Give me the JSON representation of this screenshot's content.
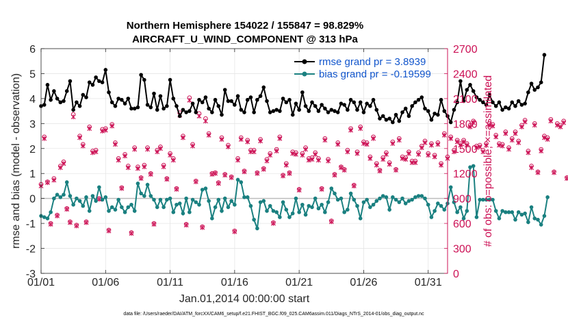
{
  "chart_data": {
    "type": "line",
    "title_line1": "Northern Hemisphere 154022 / 155847 = 98.829%",
    "title_line2": "AIRCRAFT_U_WIND_COMPONENT @ 313 hPa",
    "xlabel": "Jan.01,2014 00:00:00 start",
    "ylabel_left": "rmse and bias (model - observation)",
    "ylabel_right": "# of obs: o=possible; ×=assimilated",
    "footnote": "data file: /Users/raeder/DAI/ATM_forcXX/CAM6_setup/f.e21.FHIST_BGC.f09_025.CAM6assim.011/Diags_NTrS_2014-01/obs_diag_output.nc",
    "xlim": [
      0,
      31.5
    ],
    "ylim_left": [
      -3,
      6
    ],
    "ylim_right": [
      0,
      2700
    ],
    "x_ticks": [
      {
        "value": 0,
        "label": "01/01"
      },
      {
        "value": 5,
        "label": "01/06"
      },
      {
        "value": 10,
        "label": "01/11"
      },
      {
        "value": 15,
        "label": "01/16"
      },
      {
        "value": 20,
        "label": "01/21"
      },
      {
        "value": 25,
        "label": "01/26"
      },
      {
        "value": 30,
        "label": "01/31"
      }
    ],
    "y_ticks_left": [
      "-3",
      "-2",
      "-1",
      "0",
      "1",
      "2",
      "3",
      "4",
      "5",
      "6"
    ],
    "y_ticks_right": [
      "0",
      "300",
      "600",
      "900",
      "1200",
      "1500",
      "1800",
      "2100",
      "2400",
      "2700"
    ],
    "x_step_days": 0.25,
    "series": [
      {
        "name": "rmse",
        "legend": "rmse grand pr = 3.8939",
        "color": "#000000",
        "marker": "star",
        "values": [
          3.7,
          3.75,
          4.55,
          3.95,
          4.3,
          4.0,
          3.85,
          3.9,
          4.3,
          4.7,
          3.55,
          3.85,
          3.7,
          4.15,
          4.05,
          4.65,
          4.55,
          4.85,
          4.7,
          4.65,
          5.15,
          4.25,
          3.85,
          3.7,
          4.0,
          3.95,
          3.8,
          4.0,
          3.6,
          3.6,
          3.65,
          4.95,
          4.75,
          3.75,
          3.65,
          4.2,
          3.55,
          4.1,
          3.6,
          3.7,
          4.75,
          4.0,
          3.7,
          3.3,
          3.55,
          3.45,
          3.5,
          3.8,
          3.45,
          3.95,
          3.85,
          4.05,
          3.6,
          3.45,
          3.95,
          3.7,
          3.35,
          4.35,
          3.9,
          3.9,
          3.75,
          4.1,
          3.55,
          3.45,
          3.95,
          4.05,
          3.45,
          3.95,
          4.1,
          4.45,
          3.9,
          3.45,
          3.5,
          3.55,
          3.5,
          4.0,
          3.85,
          3.95,
          3.35,
          3.8,
          3.55,
          4.25,
          3.7,
          3.5,
          3.85,
          3.7,
          3.5,
          3.75,
          3.6,
          3.45,
          3.55,
          3.5,
          3.45,
          3.8,
          3.75,
          3.55,
          3.95,
          3.85,
          3.55,
          3.85,
          3.45,
          3.8,
          3.7,
          3.95,
          3.55,
          3.2,
          3.3,
          3.15,
          3.2,
          3.05,
          3.35,
          3.1,
          3.45,
          3.6,
          3.3,
          3.7,
          3.85,
          3.95,
          4.05,
          3.6,
          3.5,
          3.15,
          3.4,
          3.35,
          3.95,
          3.5,
          3.3,
          3.05,
          3.55,
          3.85,
          4.7,
          3.9,
          4.35,
          4.55,
          4.3,
          4.05,
          3.95,
          3.85,
          3.75,
          4.15,
          3.85,
          3.7,
          3.85,
          3.55,
          3.65,
          3.6,
          3.85,
          3.7,
          3.9,
          3.75,
          3.8,
          4.25,
          4.6,
          4.35,
          4.45,
          4.65,
          5.75
        ],
        "values_note": "approximate, read from plot at 6-hourly spacing"
      },
      {
        "name": "bias",
        "legend": "bias grand pr = -0.19599",
        "color": "#1a8080",
        "marker": "circle",
        "values": [
          -0.7,
          -0.75,
          -0.8,
          -0.55,
          0.0,
          0.15,
          0.05,
          0.15,
          0.65,
          0.1,
          -0.25,
          0.0,
          -0.1,
          -0.3,
          0.05,
          -0.5,
          0.1,
          -0.1,
          0.45,
          -0.05,
          0.05,
          -0.5,
          -0.35,
          -0.45,
          -0.05,
          -0.35,
          -0.55,
          -0.35,
          -0.25,
          -0.5,
          0.6,
          0.2,
          0.1,
          0.55,
          0.1,
          -0.05,
          -0.35,
          -0.05,
          -0.35,
          -0.05,
          0.0,
          -0.55,
          -0.25,
          -0.2,
          -0.6,
          0.0,
          -0.55,
          -0.05,
          -0.15,
          -0.25,
          0.35,
          0.4,
          -0.1,
          -0.8,
          -0.35,
          -0.05,
          -0.5,
          0.0,
          -0.35,
          -0.1,
          -0.25,
          0.75,
          0.65,
          0.05,
          0.05,
          -0.3,
          -0.85,
          -1.2,
          -0.15,
          -0.1,
          -0.5,
          -0.3,
          -0.5,
          -0.55,
          -0.75,
          -0.15,
          -0.45,
          -0.75,
          -0.6,
          0.0,
          -0.55,
          -0.25,
          -0.65,
          -0.3,
          -0.35,
          0.0,
          -0.4,
          -0.25,
          -0.55,
          -0.15,
          0.4,
          0.2,
          -0.05,
          0.0,
          -0.55,
          -0.45,
          0.2,
          -0.05,
          -0.3,
          -0.8,
          -0.15,
          -0.05,
          -0.35,
          -0.25,
          -0.1,
          0.0,
          0.1,
          0.05,
          -0.45,
          0.05,
          -0.05,
          -0.15,
          0.0,
          -0.2,
          -0.1,
          -0.05,
          0.05,
          0.1,
          0.1,
          0.0,
          -0.25,
          -0.75,
          -0.5,
          -0.2,
          -0.3,
          -0.45,
          -0.2,
          0.45,
          -0.15,
          -0.55,
          -0.35,
          -0.8,
          -0.5,
          1.25,
          1.3,
          -0.75,
          -0.05,
          -0.05,
          -0.05,
          -0.05,
          -0.05,
          -0.5,
          -0.8,
          -0.5,
          -0.55,
          -0.55,
          -0.55,
          -0.85,
          -0.55,
          -0.65,
          -0.6,
          -0.95,
          -0.35,
          -0.8,
          -0.85,
          -1.05,
          -0.7,
          0.05
        ],
        "values_note": "approximate, read from plot at 6-hourly spacing"
      },
      {
        "name": "obs_possible",
        "color": "#cc1155",
        "marker": "circle-open",
        "axis": "right",
        "values": [
          1070,
          1640,
          1100,
          600,
          1140,
          700,
          1290,
          1340,
          780,
          620,
          1910,
          580,
          1650,
          1550,
          620,
          1760,
          1470,
          1480,
          900,
          1730,
          1740,
          520,
          1790,
          1570,
          1380,
          1030,
          1430,
          1290,
          490,
          1510,
          1280,
          1150,
          1300,
          1510,
          1200,
          600,
          1480,
          1520,
          1300,
          1140,
          1440,
          1380,
          1020,
          1930,
          1650,
          590,
          2110,
          1550,
          1110,
          1920,
          560,
          1860,
          1680,
          1200,
          1210,
          1090,
          1630,
          1190,
          1540,
          1160,
          510,
          1380,
          1630,
          1230,
          1600,
          1480,
          1480,
          1210,
          1610,
          1260,
          1370,
          1440,
          610,
          1490,
          1640,
          1180,
          1320,
          1210,
          1460,
          1450,
          1010,
          1440,
          1510,
          1380,
          1390,
          1450,
          1380,
          1020,
          1620,
          1370,
          630,
          1190,
          1570,
          1280,
          1250,
          1480,
          1740,
          1060,
          1460,
          1760,
          1580,
          1570,
          1400,
          1640,
          1320,
          1240,
          1390,
          1450,
          1330,
          1580,
          1250,
          1620,
          1400,
          1390,
          1460,
          1350,
          1350,
          1450,
          1530,
          1590,
          1440,
          1560,
          1420,
          1570,
          1320,
          1680,
          1400,
          1640,
          1480,
          1600,
          1560,
          1600,
          1560,
          1780,
          1830,
          1530,
          1540,
          1480,
          1560,
          1800,
          1790,
          1660,
          1560,
          1550,
          1700,
          1510,
          1620,
          1700,
          1590,
          1780,
          1840,
          1470,
          1290,
          1800,
          1220,
          1490,
          1650,
          1630,
          1850,
          1220,
          1800,
          1780,
          1830,
          1150
        ],
        "values_note": "approximate"
      },
      {
        "name": "obs_assimilated",
        "color": "#cc1155",
        "marker": "x",
        "axis": "right",
        "values": [
          1050,
          1620,
          1090,
          590,
          1120,
          690,
          1270,
          1320,
          770,
          610,
          1880,
          570,
          1630,
          1530,
          610,
          1740,
          1450,
          1460,
          890,
          1710,
          1720,
          510,
          1770,
          1550,
          1360,
          1020,
          1410,
          1270,
          480,
          1490,
          1260,
          1140,
          1280,
          1490,
          1190,
          590,
          1460,
          1500,
          1280,
          1130,
          1420,
          1360,
          1010,
          1900,
          1630,
          580,
          2080,
          1530,
          1100,
          1890,
          550,
          1830,
          1660,
          1190,
          1200,
          1080,
          1610,
          1180,
          1520,
          1150,
          500,
          1360,
          1610,
          1220,
          1580,
          1460,
          1460,
          1200,
          1590,
          1250,
          1350,
          1420,
          600,
          1470,
          1620,
          1170,
          1300,
          1200,
          1440,
          1430,
          1000,
          1420,
          1490,
          1360,
          1370,
          1430,
          1360,
          1010,
          1600,
          1350,
          620,
          1180,
          1550,
          1270,
          1240,
          1460,
          1720,
          1050,
          1440,
          1740,
          1560,
          1550,
          1380,
          1620,
          1300,
          1230,
          1370,
          1430,
          1310,
          1560,
          1240,
          1600,
          1380,
          1370,
          1440,
          1330,
          1330,
          1430,
          1510,
          1570,
          1420,
          1540,
          1400,
          1550,
          1300,
          1660,
          1380,
          1620,
          1460,
          1580,
          1540,
          1580,
          1540,
          1760,
          1810,
          1510,
          1520,
          1460,
          1540,
          1780,
          1770,
          1640,
          1540,
          1530,
          1680,
          1490,
          1600,
          1680,
          1570,
          1760,
          1820,
          1450,
          1270,
          1780,
          1210,
          1470,
          1630,
          1610,
          1830,
          1210,
          1780,
          1760,
          1810,
          1140
        ],
        "values_note": "approximate"
      }
    ]
  }
}
